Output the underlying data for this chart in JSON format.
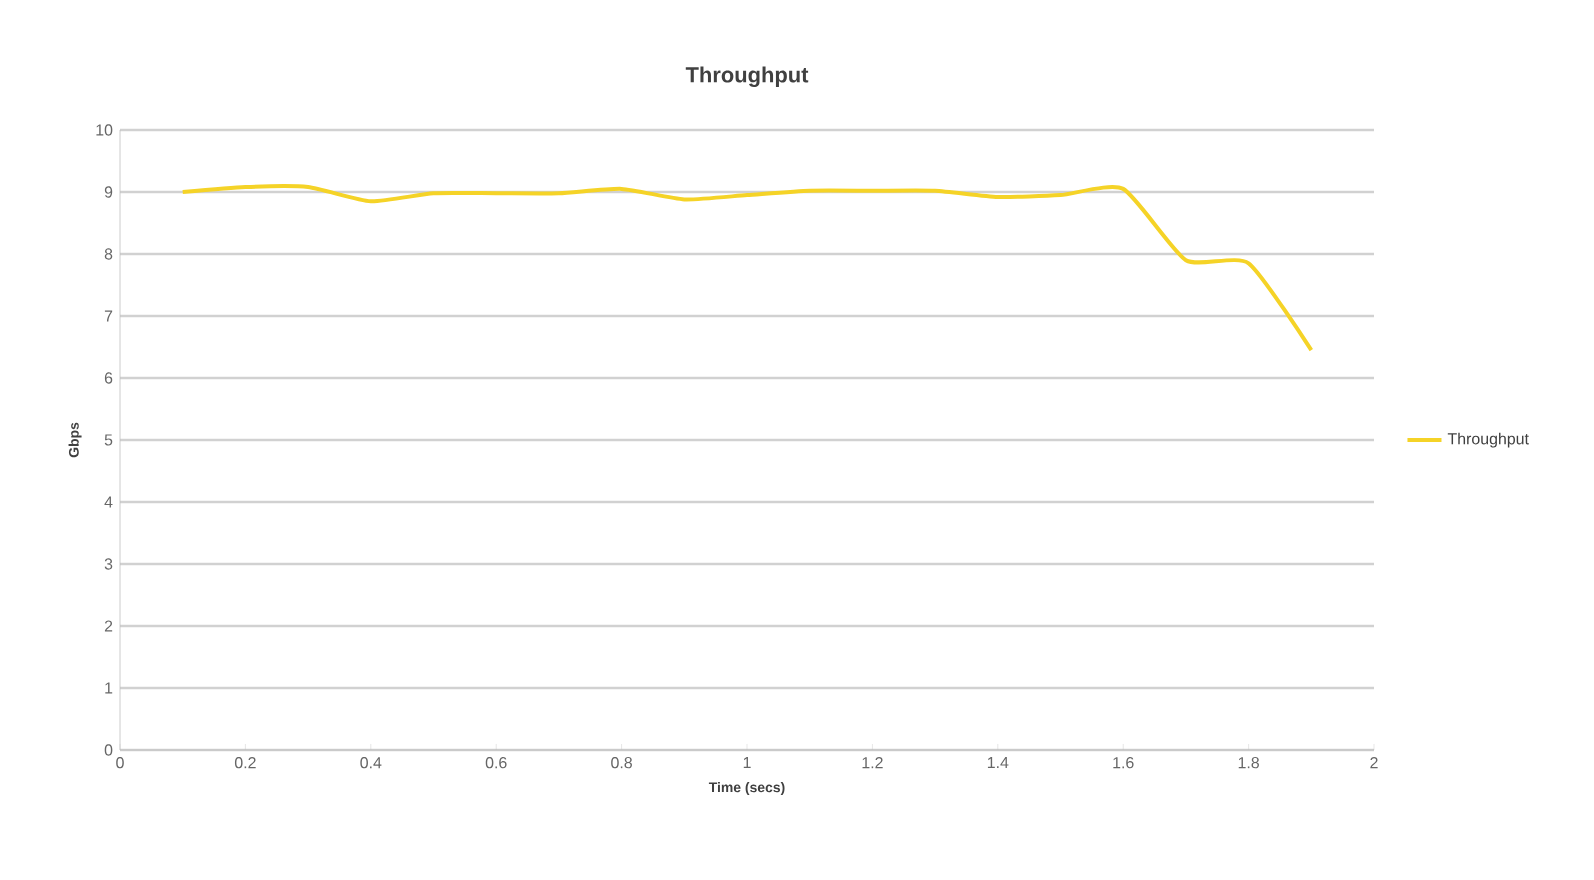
{
  "chart_data": {
    "type": "line",
    "title": "Throughput",
    "xlabel": "Time (secs)",
    "ylabel": "Gbps",
    "x": [
      0.1,
      0.2,
      0.3,
      0.4,
      0.5,
      0.6,
      0.7,
      0.8,
      0.9,
      1.0,
      1.1,
      1.2,
      1.3,
      1.4,
      1.5,
      1.6,
      1.7,
      1.8,
      1.9
    ],
    "series": [
      {
        "name": "Throughput",
        "color": "#f5d327",
        "values": [
          9.0,
          9.08,
          9.08,
          8.85,
          8.98,
          8.98,
          8.98,
          9.05,
          8.88,
          8.95,
          9.02,
          9.02,
          9.02,
          8.92,
          8.95,
          9.05,
          7.9,
          7.85,
          6.45
        ]
      }
    ],
    "xlim": [
      0,
      2
    ],
    "xticks": [
      0,
      0.2,
      0.4,
      0.6,
      0.8,
      1,
      1.2,
      1.4,
      1.6,
      1.8,
      2
    ],
    "ylim": [
      0,
      10
    ],
    "yticks": [
      0,
      1,
      2,
      3,
      4,
      5,
      6,
      7,
      8,
      9,
      10
    ],
    "grid": "y",
    "legend": "right",
    "marker": "none",
    "line_style": "solid"
  }
}
